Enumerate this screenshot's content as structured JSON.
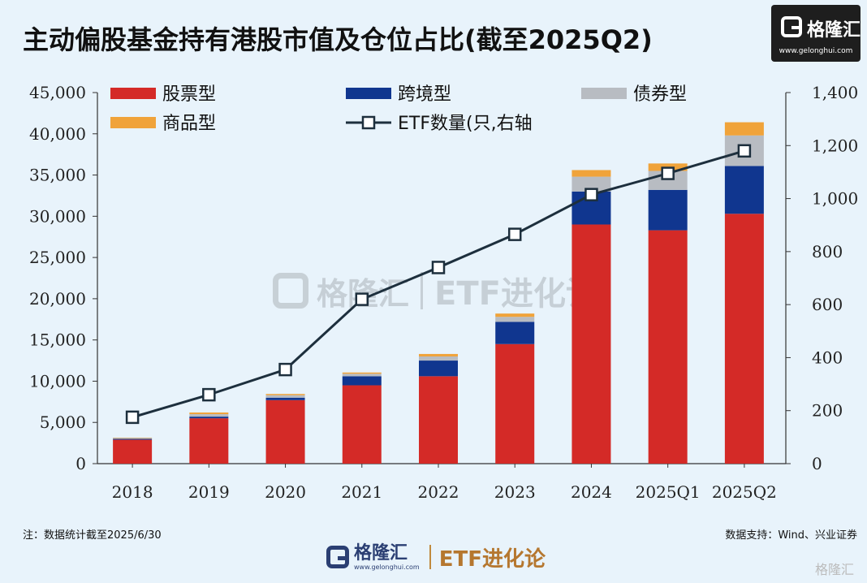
{
  "title": "主动偏股基金持有港股市值及仓位占比(截至2025Q2)",
  "logo": {
    "name": "格隆汇",
    "url": "www.gelonghui.com"
  },
  "watermark": {
    "name": "格隆汇",
    "etf": "ETF进化论"
  },
  "footer": {
    "note": "注：数据统计截至2025/6/30",
    "source": "数据支持：Wind、兴业证券",
    "brand_name": "格隆汇",
    "brand_url": "www.gelonghui.com",
    "brand_etf": "ETF进化论"
  },
  "corner_watermark": "格隆汇",
  "chart_data": {
    "type": "bar",
    "stacked": true,
    "categories": [
      "2018",
      "2019",
      "2020",
      "2021",
      "2022",
      "2023",
      "2024",
      "2025Q1",
      "2025Q2"
    ],
    "series": [
      {
        "name": "股票型",
        "color": "#d42a27",
        "axis": "left",
        "values": [
          2900,
          5500,
          7700,
          9500,
          10600,
          14500,
          29000,
          28300,
          30300
        ]
      },
      {
        "name": "跨境型",
        "color": "#10368f",
        "axis": "left",
        "values": [
          100,
          200,
          300,
          1100,
          1900,
          2700,
          4000,
          4900,
          5800
        ]
      },
      {
        "name": "债券型",
        "color": "#b8bcc2",
        "axis": "left",
        "values": [
          100,
          300,
          300,
          300,
          500,
          600,
          1800,
          2300,
          3700
        ]
      },
      {
        "name": "商品型",
        "color": "#f0a33a",
        "axis": "left",
        "values": [
          50,
          200,
          150,
          150,
          300,
          400,
          800,
          900,
          1600
        ]
      },
      {
        "name": "ETF数量(只,右轴",
        "color": "#1d2f3d",
        "type": "line",
        "axis": "right",
        "values": [
          175,
          260,
          355,
          620,
          740,
          865,
          1015,
          1095,
          1180
        ]
      }
    ],
    "left_axis": {
      "min": 0,
      "max": 45000,
      "ticks": [
        "0",
        "5,000",
        "10,000",
        "15,000",
        "20,000",
        "25,000",
        "30,000",
        "35,000",
        "40,000",
        "45,000"
      ]
    },
    "right_axis": {
      "min": 0,
      "max": 1400,
      "ticks": [
        "0",
        "200",
        "400",
        "600",
        "800",
        "1,000",
        "1,200",
        "1,400"
      ]
    },
    "grid": false,
    "legend_position": "top"
  }
}
